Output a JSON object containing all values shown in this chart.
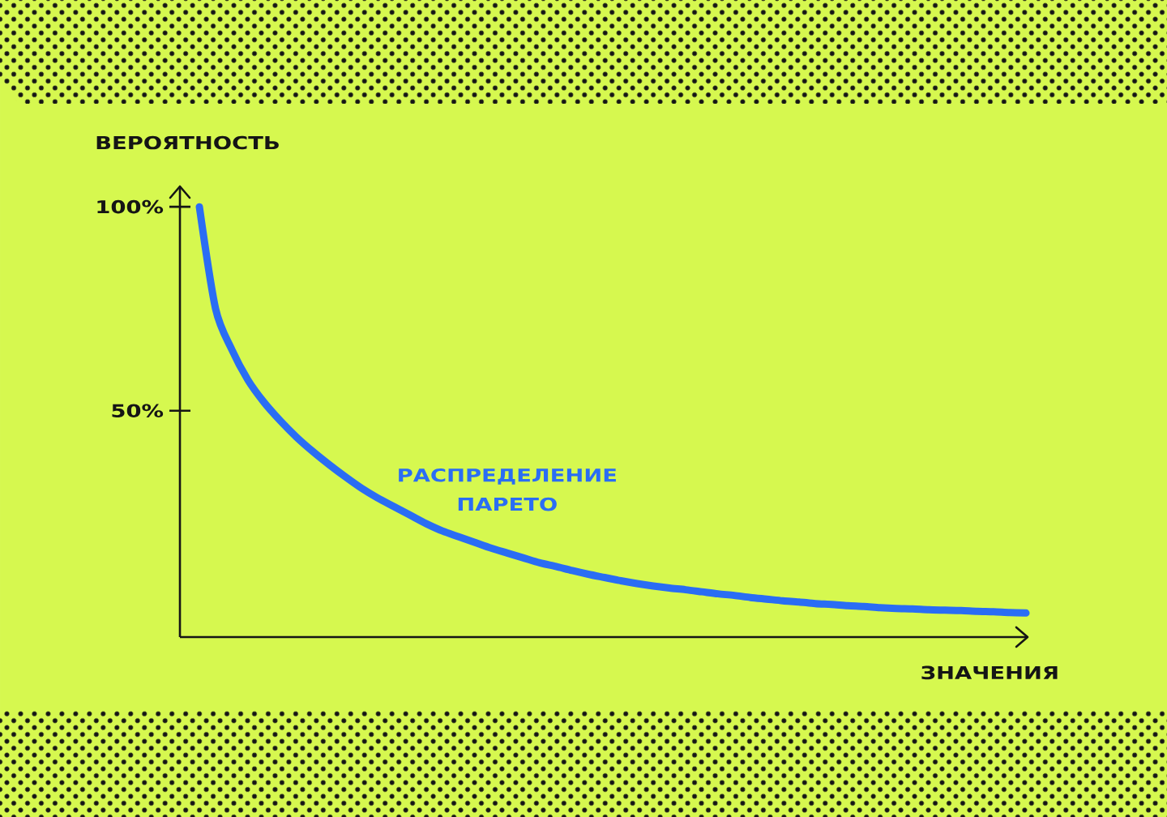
{
  "chart_data": {
    "type": "line",
    "xlabel": "ЗНАЧЕНИЯ",
    "ylabel": "ВЕРОЯТНОСТЬ",
    "categories": [
      null,
      null,
      null,
      null,
      null,
      null,
      null,
      null,
      null,
      null,
      null,
      null,
      null,
      null,
      null,
      null,
      null,
      null,
      null,
      null,
      null,
      null,
      null,
      null,
      null,
      null,
      null,
      null,
      null,
      null,
      null,
      null,
      null,
      null,
      null,
      null,
      null,
      null,
      null,
      null,
      null,
      null,
      null,
      null,
      null,
      null,
      null,
      null,
      null,
      null,
      null,
      null
    ],
    "series": [
      {
        "name": "РАСПРЕДЕЛЕНИЕ ПАРЕТО",
        "color": "#2a6df4",
        "values": [
          100,
          75,
          65,
          57.5,
          52,
          47.5,
          43.5,
          40,
          36.8,
          33.8,
          31,
          28.6,
          26.5,
          24.4,
          22.3,
          20.5,
          19.1,
          17.7,
          16.3,
          15.1,
          13.9,
          12.7,
          11.8,
          10.8,
          9.9,
          9.1,
          8.3,
          7.6,
          7,
          6.5,
          6.1,
          5.6,
          5.1,
          4.7,
          4.2,
          3.8,
          3.4,
          3.1,
          2.7,
          2.5,
          2.2,
          2,
          1.7,
          1.5,
          1.4,
          1.2,
          1.1,
          1,
          0.8,
          0.7,
          0.5,
          0.4
        ]
      }
    ],
    "ylim": [
      -5.5,
      105
    ],
    "yticks": [
      {
        "value": 100,
        "label": "100%"
      },
      {
        "value": 50,
        "label": "50%"
      }
    ],
    "tick_labels": "y",
    "line_style": "solid"
  }
}
